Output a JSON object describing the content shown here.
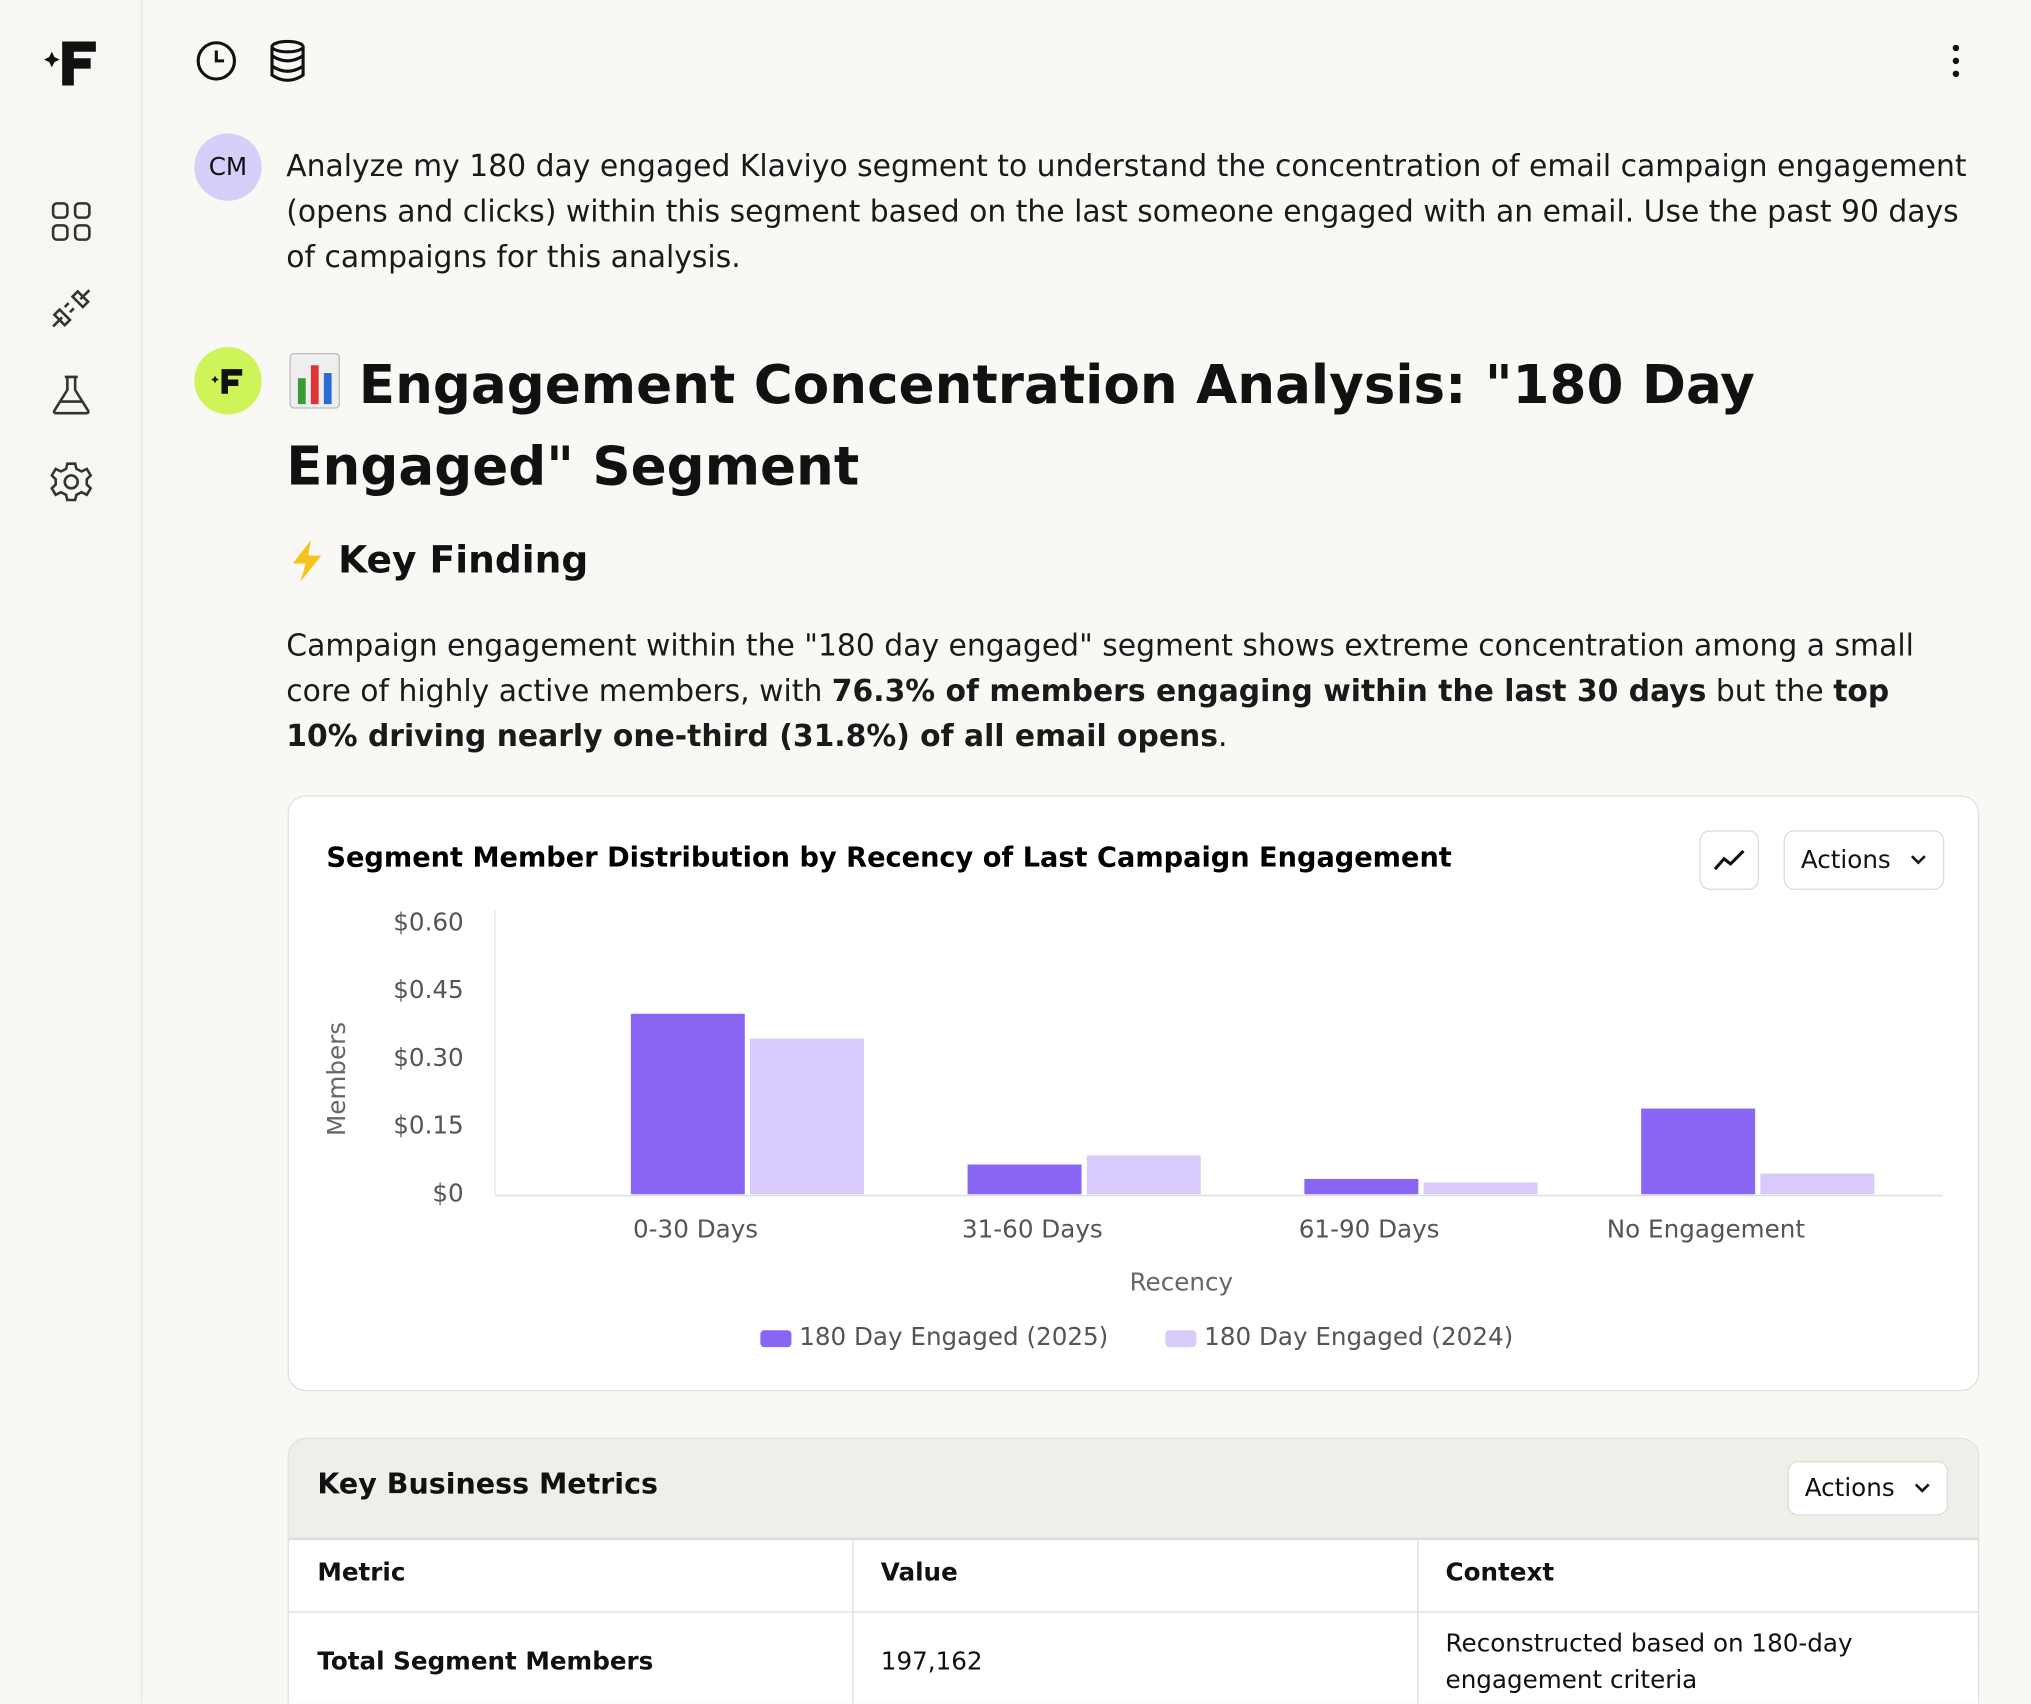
{
  "user": {
    "avatar": "CM",
    "message": "Analyze my 180 day engaged Klaviyo segment to understand the concentration of email campaign engagement (opens and clicks) within this segment based on the last someone engaged with an email. Use the past 90 days of campaigns for this analysis."
  },
  "response": {
    "title": "Engagement Concentration Analysis: \"180 Day Engaged\" Segment",
    "key_finding": "Key Finding",
    "paragraph": [
      {
        "text": "Campaign engagement within the \"180 day engaged\" segment shows extreme concentration among a small core of highly active members, with ",
        "bold": false
      },
      {
        "text": "76.3% of members engaging within the last 30 days",
        "bold": true
      },
      {
        "text": " but the ",
        "bold": false
      },
      {
        "text": "top 10% driving nearly one-third (31.8%) of all email opens",
        "bold": true
      },
      {
        "text": ".",
        "bold": false
      }
    ],
    "chart_data": {
      "type": "bar",
      "title": "Segment Member Distribution by Recency of Last Campaign Engagement",
      "actions": "Actions",
      "x_label": "Recency",
      "y_label": "Members",
      "categories": [
        "0-30 Days",
        "31-60 Days",
        "61-90 Days",
        "No Engagement"
      ],
      "series": [
        {
          "name": "180 Day Engaged (2025)",
          "color": "#8a66f5",
          "values": [
            0.4,
            0.066,
            0.034,
            0.19
          ]
        },
        {
          "name": "180 Day Engaged (2024)",
          "color": "#d8cbfb",
          "values": [
            0.345,
            0.086,
            0.026,
            0.046
          ]
        }
      ],
      "ylim": [
        0,
        0.6
      ],
      "yticks": [
        {
          "value": 0,
          "label": "$0"
        },
        {
          "value": 0.15,
          "label": "$0.15"
        },
        {
          "value": 0.3,
          "label": "$0.30"
        },
        {
          "value": 0.45,
          "label": "$0.45"
        },
        {
          "value": 0.6,
          "label": "$0.60"
        }
      ]
    },
    "table": {
      "title": "Key Business Metrics",
      "actions": "Actions",
      "columns": [
        "Metric",
        "Value",
        "Context"
      ],
      "rows": [
        [
          "Total Segment Members",
          "197,162",
          "Reconstructed based on 180-day engagement criteria"
        ]
      ]
    }
  }
}
